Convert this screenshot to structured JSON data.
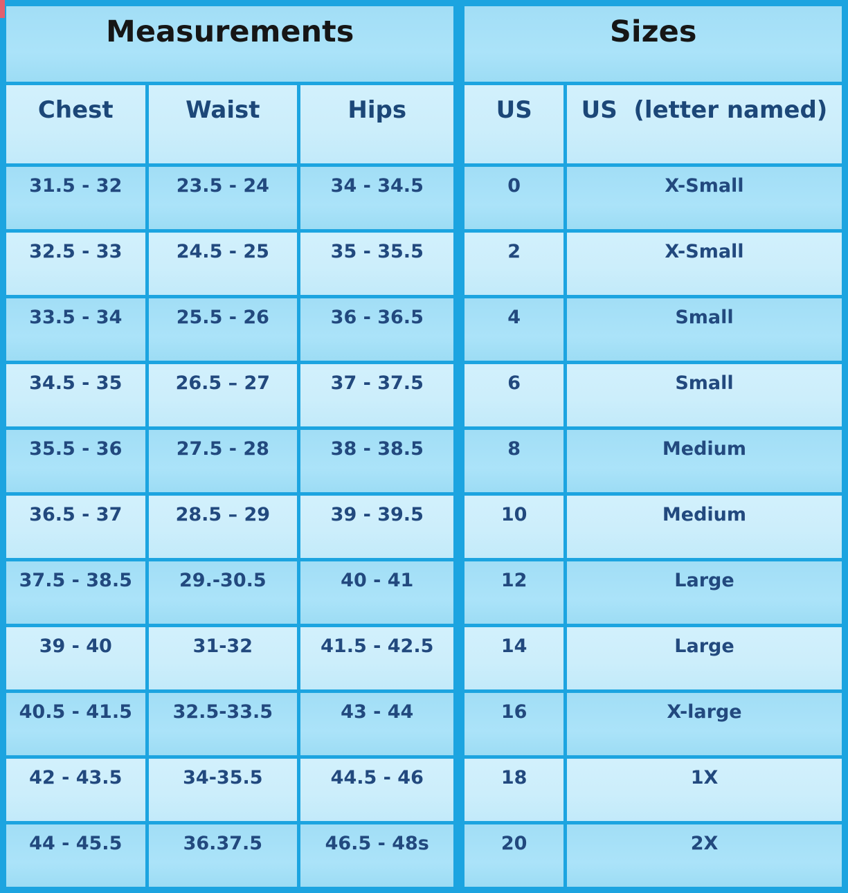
{
  "table": {
    "header_groups": [
      {
        "label": "Measurements"
      },
      {
        "label": "Sizes"
      }
    ],
    "columns": [
      "Chest",
      "Waist",
      "Hips",
      "US",
      "US  (letter named)"
    ],
    "rows": [
      [
        "31.5 - 32",
        "23.5 - 24",
        "34 - 34.5",
        "0",
        "X-Small"
      ],
      [
        "32.5 - 33",
        "24.5 - 25",
        "35 - 35.5",
        "2",
        "X-Small"
      ],
      [
        "33.5 - 34",
        "25.5 - 26",
        "36 - 36.5",
        "4",
        "Small"
      ],
      [
        "34.5 - 35",
        "26.5 – 27",
        "37 - 37.5",
        "6",
        "Small"
      ],
      [
        "35.5 - 36",
        "27.5 - 28",
        "38 - 38.5",
        "8",
        "Medium"
      ],
      [
        "36.5 - 37",
        "28.5 – 29",
        "39 - 39.5",
        "10",
        "Medium"
      ],
      [
        "37.5 - 38.5",
        "29.-30.5",
        "40 - 41",
        "12",
        "Large"
      ],
      [
        "39 - 40",
        "31-32",
        "41.5 - 42.5",
        "14",
        "Large"
      ],
      [
        "40.5 - 41.5",
        "32.5-33.5",
        "43 - 44",
        "16",
        "X-large"
      ],
      [
        "42 - 43.5",
        "34-35.5",
        "44.5 - 46",
        "18",
        "1X"
      ],
      [
        "44 - 45.5",
        "36.37.5",
        "46.5 - 48s",
        "20",
        "2X"
      ]
    ]
  },
  "colors": {
    "border": "#1ca4e0",
    "row_dark": "#a2def6",
    "row_light": "#cceefb",
    "header_text": "#161616",
    "data_text": "#22497e"
  }
}
